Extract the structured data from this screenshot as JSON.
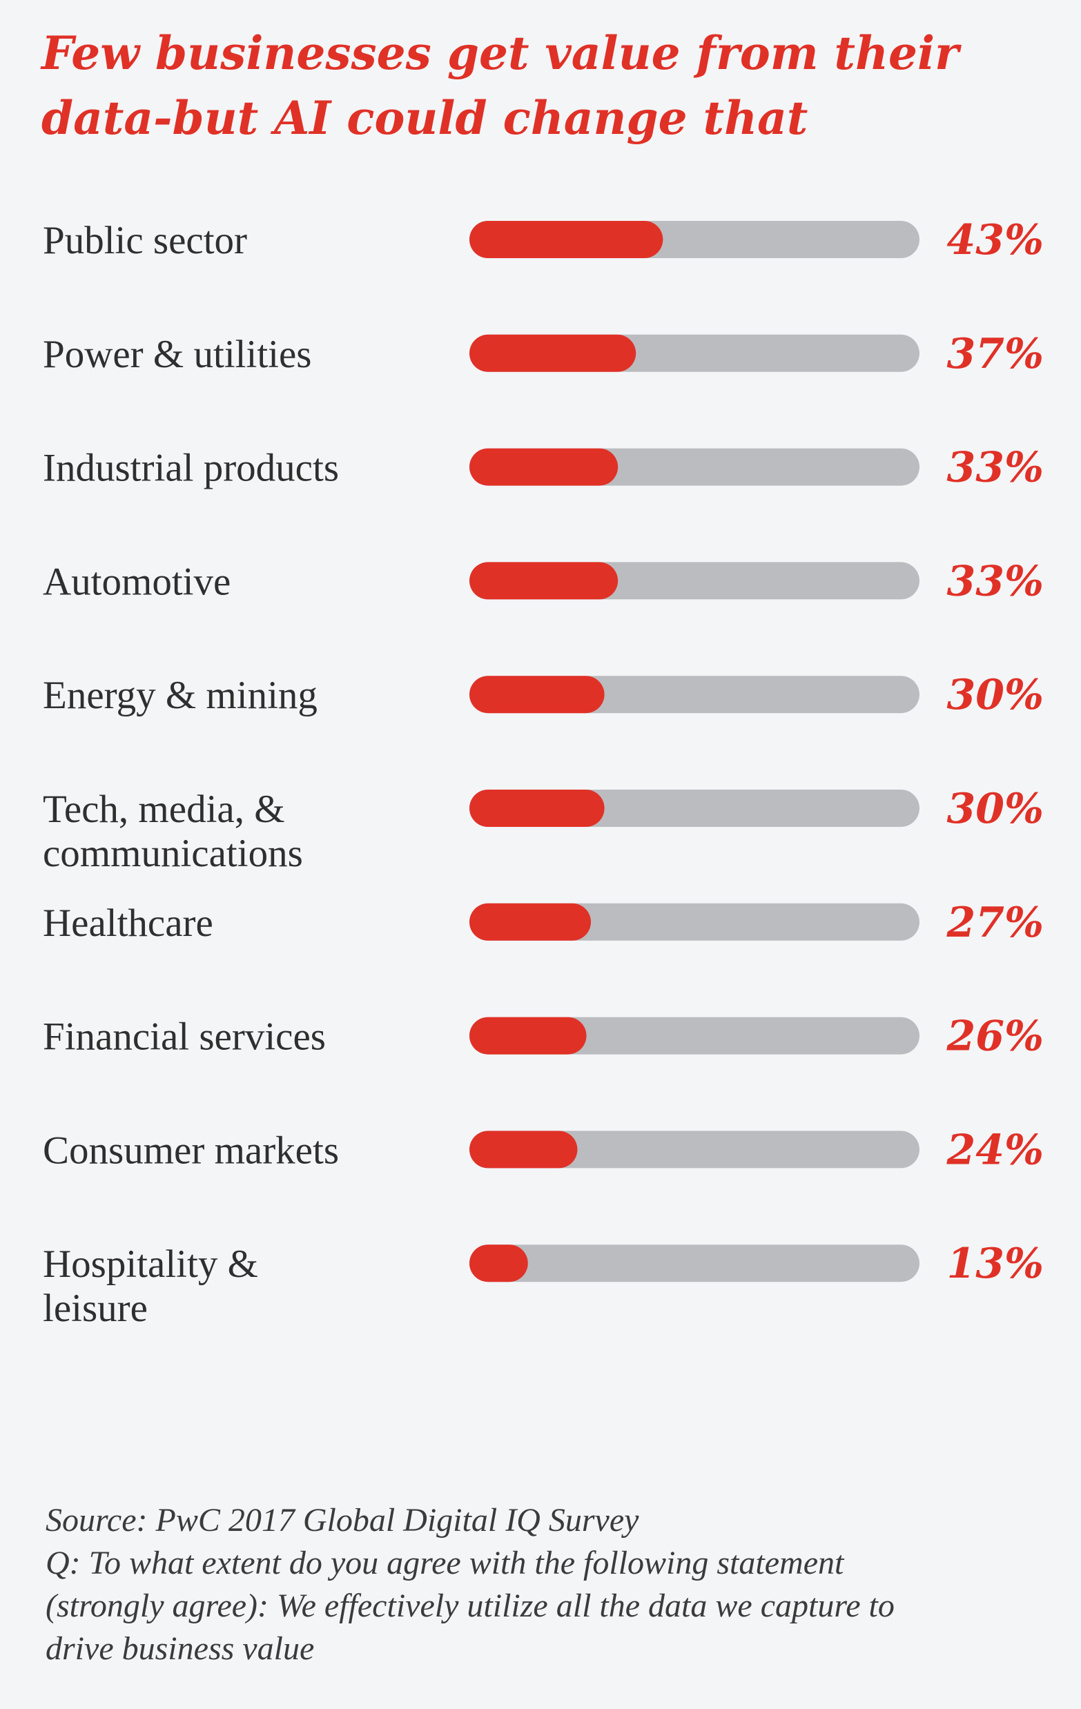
{
  "title": "Few businesses get value from their data-but AI could change that",
  "chart_data": {
    "type": "bar",
    "orientation": "horizontal",
    "title": "Few businesses get value from their data-but AI could change that",
    "categories": [
      "Public sector",
      "Power & utilities",
      "Industrial products",
      "Automotive",
      "Energy & mining",
      "Tech, media, & communications",
      "Healthcare",
      "Financial services",
      "Consumer markets",
      "Hospitality & leisure"
    ],
    "category_lines": [
      [
        "Public sector"
      ],
      [
        "Power & utilities"
      ],
      [
        "Industrial products"
      ],
      [
        "Automotive"
      ],
      [
        "Energy & mining"
      ],
      [
        "Tech, media, &",
        "communications"
      ],
      [
        "Healthcare"
      ],
      [
        "Financial services"
      ],
      [
        "Consumer markets"
      ],
      [
        "Hospitality &",
        "leisure"
      ]
    ],
    "values": [
      43,
      37,
      33,
      33,
      30,
      30,
      27,
      26,
      24,
      13
    ],
    "value_labels": [
      "43%",
      "37%",
      "33%",
      "33%",
      "30%",
      "30%",
      "27%",
      "26%",
      "24%",
      "13%"
    ],
    "xlim": [
      0,
      100
    ],
    "grid": false,
    "colors": {
      "bar": "#e03127",
      "track": "#bbbcbf",
      "value_label": "#e03127",
      "category_label": "#2f2f2f"
    }
  },
  "source": {
    "line1": "Source: PwC 2017 Global Digital IQ Survey",
    "line2": "Q: To what extent do you agree with the following statement",
    "line3": "(strongly agree): We effectively utilize all the data we capture to",
    "line4": "drive business value"
  }
}
